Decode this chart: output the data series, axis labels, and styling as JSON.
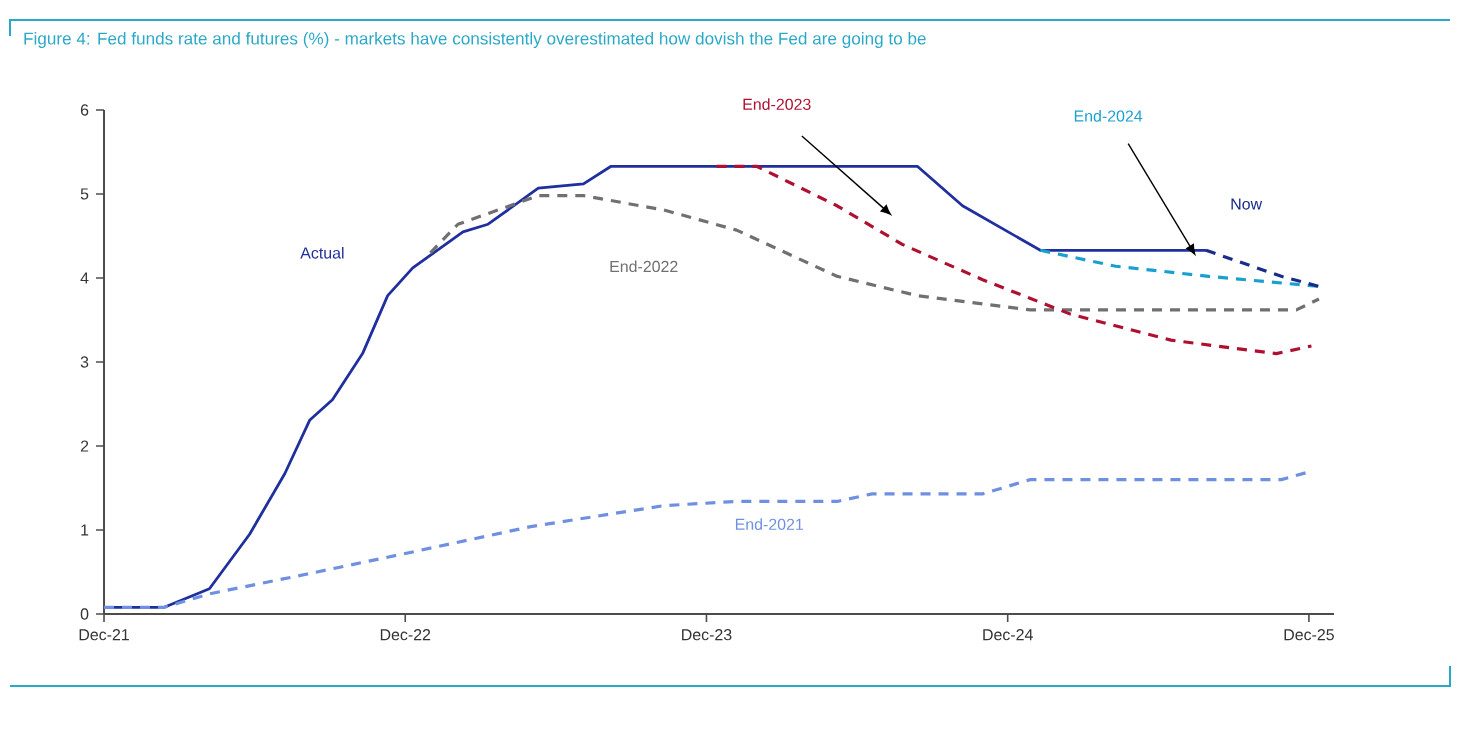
{
  "chart_data": {
    "type": "line",
    "title": "Figure 4: Fed funds rate and futures (%) - markets have consistently overestimated how dovish the Fed are going to be",
    "xlim": [
      "2021-12-01",
      "2026-01-01"
    ],
    "xticks": [
      {
        "value": "2021-12-01",
        "label": "Dec-21"
      },
      {
        "value": "2022-12-01",
        "label": "Dec-22"
      },
      {
        "value": "2023-12-01",
        "label": "Dec-23"
      },
      {
        "value": "2024-12-01",
        "label": "Dec-24"
      },
      {
        "value": "2025-12-01",
        "label": "Dec-25"
      }
    ],
    "ylim": [
      0,
      6
    ],
    "yticks": [
      0,
      1,
      2,
      3,
      4,
      5,
      6
    ],
    "grid": false,
    "series": [
      {
        "name": "Actual",
        "color": "#1f2f9e",
        "line_style": "solid",
        "x": [
          "2021-12-01",
          "2022-02-13",
          "2022-04-07",
          "2022-05-25",
          "2022-07-07",
          "2022-08-07",
          "2022-09-04",
          "2022-10-10",
          "2022-11-10",
          "2022-12-10",
          "2023-02-10",
          "2023-03-10",
          "2023-05-10",
          "2023-07-04",
          "2023-08-07",
          "2024-08-13",
          "2024-10-07",
          "2025-01-10",
          "2025-07-28"
        ],
        "values": [
          0.08,
          0.08,
          0.3,
          0.95,
          1.67,
          2.31,
          2.55,
          3.1,
          3.79,
          4.12,
          4.55,
          4.64,
          5.07,
          5.12,
          5.33,
          5.33,
          4.86,
          4.33,
          4.33
        ]
      },
      {
        "name": "End-2021",
        "color": "#6f8fe0",
        "line_style": "dashed",
        "x": [
          "2021-12-01",
          "2022-02-13",
          "2022-04-07",
          "2022-08-01",
          "2022-12-01",
          "2023-05-01",
          "2023-10-10",
          "2024-01-07",
          "2024-05-07",
          "2024-06-19",
          "2024-11-01",
          "2024-12-28",
          "2025-10-28",
          "2025-12-04"
        ],
        "values": [
          0.08,
          0.08,
          0.24,
          0.47,
          0.72,
          1.04,
          1.29,
          1.34,
          1.34,
          1.43,
          1.43,
          1.6,
          1.6,
          1.7
        ]
      },
      {
        "name": "End-2022",
        "color": "#707070",
        "line_style": "dashed",
        "x": [
          "2023-01-01",
          "2023-02-04",
          "2023-05-10",
          "2023-07-04",
          "2023-10-10",
          "2024-01-07",
          "2024-05-07",
          "2024-08-13",
          "2024-12-28",
          "2025-11-16",
          "2025-12-13"
        ],
        "values": [
          4.3,
          4.64,
          4.98,
          4.98,
          4.81,
          4.57,
          4.02,
          3.79,
          3.62,
          3.62,
          3.75
        ]
      },
      {
        "name": "End-2023",
        "color": "#b01030",
        "line_style": "dashed",
        "x": [
          "2023-12-13",
          "2024-02-01",
          "2024-05-07",
          "2024-07-25",
          "2024-11-01",
          "2025-02-16",
          "2025-06-16",
          "2025-10-22",
          "2025-12-04"
        ],
        "values": [
          5.33,
          5.33,
          4.86,
          4.4,
          3.98,
          3.57,
          3.26,
          3.1,
          3.19
        ]
      },
      {
        "name": "End-2024",
        "color": "#1aa0d0",
        "line_style": "dashed",
        "x": [
          "2025-01-10",
          "2025-04-10",
          "2025-08-01",
          "2025-12-13"
        ],
        "values": [
          4.33,
          4.14,
          4.02,
          3.9
        ]
      },
      {
        "name": "Now",
        "color": "#1a2a8a",
        "line_style": "dashed",
        "x": [
          "2025-07-28",
          "2025-10-28",
          "2025-12-13"
        ],
        "values": [
          4.33,
          4.02,
          3.9
        ]
      }
    ]
  }
}
